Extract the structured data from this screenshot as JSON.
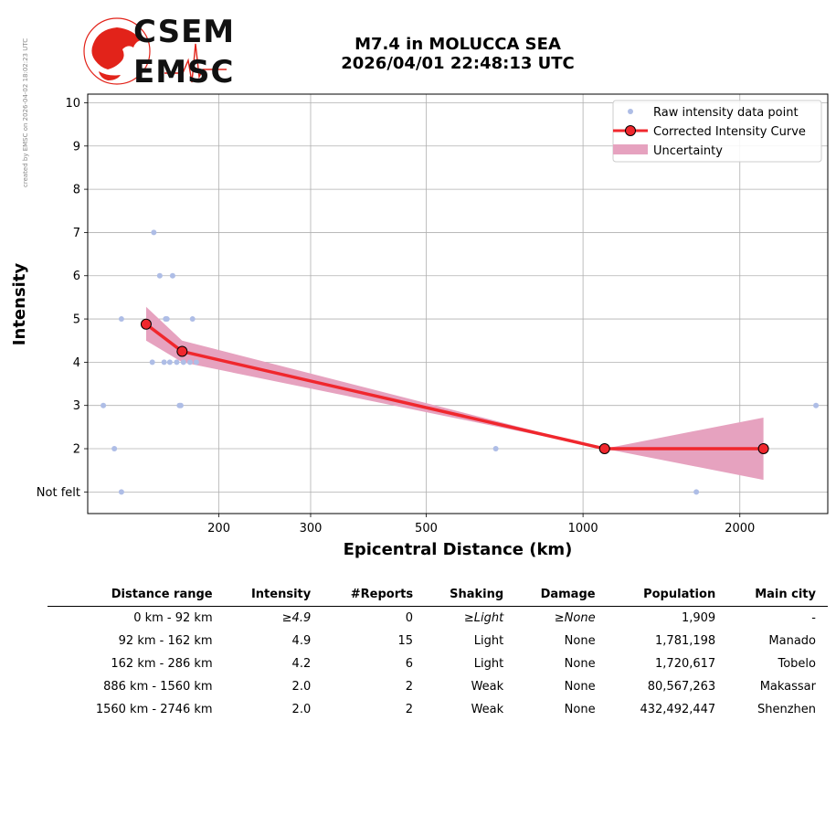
{
  "side_note": "created by EMSC on 2026-04-02 18:02:23 UTC",
  "header": {
    "logo_top": "CSEM",
    "logo_bottom": "EMSC",
    "title_line1": "M7.4 in MOLUCCA SEA",
    "title_line2": "2026/04/01 22:48:13 UTC"
  },
  "colors": {
    "raw_points": "#aebde6",
    "curve": "#f0272d",
    "uncertainty": "#e6a2bf",
    "logo_red": "#e2231a"
  },
  "chart_data": {
    "type": "scatter",
    "xlabel": "Epicentral Distance (km)",
    "ylabel": "Intensity",
    "x_scale": "log",
    "xlim": [
      112,
      2950
    ],
    "ylim": [
      0.5,
      10.2
    ],
    "x_ticks": [
      200,
      300,
      500,
      1000,
      2000
    ],
    "y_ticks": [
      {
        "value": 1,
        "label": "Not felt"
      },
      {
        "value": 2,
        "label": "2"
      },
      {
        "value": 3,
        "label": "3"
      },
      {
        "value": 4,
        "label": "4"
      },
      {
        "value": 5,
        "label": "5"
      },
      {
        "value": 6,
        "label": "6"
      },
      {
        "value": 7,
        "label": "7"
      },
      {
        "value": 8,
        "label": "8"
      },
      {
        "value": 9,
        "label": "9"
      },
      {
        "value": 10,
        "label": "10"
      }
    ],
    "grid": true,
    "legend_position": "top-right",
    "legend": [
      {
        "key": "raw",
        "label": "Raw intensity data point"
      },
      {
        "key": "curve",
        "label": "Corrected Intensity Curve"
      },
      {
        "key": "band",
        "label": "Uncertainty"
      }
    ],
    "raw_points": [
      {
        "x": 120,
        "y": 3
      },
      {
        "x": 126,
        "y": 2
      },
      {
        "x": 130,
        "y": 5
      },
      {
        "x": 130,
        "y": 1
      },
      {
        "x": 149,
        "y": 4
      },
      {
        "x": 150,
        "y": 7
      },
      {
        "x": 154,
        "y": 6
      },
      {
        "x": 157,
        "y": 4
      },
      {
        "x": 158,
        "y": 5
      },
      {
        "x": 159,
        "y": 5
      },
      {
        "x": 161,
        "y": 4
      },
      {
        "x": 163,
        "y": 6
      },
      {
        "x": 166,
        "y": 4
      },
      {
        "x": 168,
        "y": 3
      },
      {
        "x": 169,
        "y": 3
      },
      {
        "x": 171,
        "y": 4
      },
      {
        "x": 176,
        "y": 4
      },
      {
        "x": 178,
        "y": 5
      },
      {
        "x": 181,
        "y": 4
      },
      {
        "x": 680,
        "y": 2
      },
      {
        "x": 1650,
        "y": 1
      },
      {
        "x": 2800,
        "y": 3
      }
    ],
    "curve": [
      {
        "x": 145,
        "y": 4.88
      },
      {
        "x": 170,
        "y": 4.25
      },
      {
        "x": 1100,
        "y": 2.0
      },
      {
        "x": 2220,
        "y": 2.0
      }
    ],
    "band": [
      {
        "x": 145,
        "low": 4.5,
        "high": 5.28
      },
      {
        "x": 170,
        "low": 4.0,
        "high": 4.5
      },
      {
        "x": 1100,
        "low": 2.0,
        "high": 2.0
      },
      {
        "x": 2220,
        "low": 1.28,
        "high": 2.72
      }
    ]
  },
  "table": {
    "headers": [
      "Distance range",
      "Intensity",
      "#Reports",
      "Shaking",
      "Damage",
      "Population",
      "Main city"
    ],
    "rows": [
      {
        "cells": [
          "0 km -   92 km",
          "≥4.9",
          "0",
          "≥Light",
          "≥None",
          "1,909",
          "-"
        ],
        "italic": [
          false,
          true,
          false,
          true,
          true,
          false,
          false
        ]
      },
      {
        "cells": [
          "92 km -  162 km",
          "4.9",
          "15",
          "Light",
          "None",
          "1,781,198",
          "Manado"
        ],
        "italic": [
          false,
          false,
          false,
          false,
          false,
          false,
          false
        ]
      },
      {
        "cells": [
          "162 km -  286 km",
          "4.2",
          "6",
          "Light",
          "None",
          "1,720,617",
          "Tobelo"
        ],
        "italic": [
          false,
          false,
          false,
          false,
          false,
          false,
          false
        ]
      },
      {
        "cells": [
          "886 km - 1560 km",
          "2.0",
          "2",
          "Weak",
          "None",
          "80,567,263",
          "Makassar"
        ],
        "italic": [
          false,
          false,
          false,
          false,
          false,
          false,
          false
        ]
      },
      {
        "cells": [
          "1560 km - 2746 km",
          "2.0",
          "2",
          "Weak",
          "None",
          "432,492,447",
          "Shenzhen"
        ],
        "italic": [
          false,
          false,
          false,
          false,
          false,
          false,
          false
        ]
      }
    ]
  }
}
